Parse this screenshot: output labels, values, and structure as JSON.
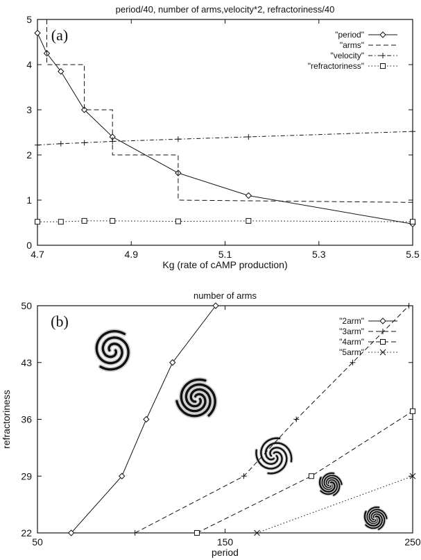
{
  "chart_data": [
    {
      "type": "line",
      "panel_label": "(a)",
      "title": "period/40, number of arms,velocity*2, refractoriness/40",
      "xlabel": "Kg (rate of cAMP production)",
      "ylabel": "",
      "xlim": [
        4.7,
        5.5
      ],
      "ylim": [
        0,
        5
      ],
      "xticks": [
        "4.7",
        "4.9",
        "5.1",
        "5.3",
        "5.5"
      ],
      "yticks": [
        "0",
        "1",
        "2",
        "3",
        "4",
        "5"
      ],
      "grid": false,
      "legend": "top-right",
      "series": [
        {
          "name": "\"period\"",
          "style": "solid",
          "marker": "diamond",
          "x": [
            4.7,
            4.72,
            4.75,
            4.8,
            4.86,
            5.0,
            5.15,
            5.5
          ],
          "y": [
            4.7,
            4.25,
            3.85,
            3.0,
            2.4,
            1.6,
            1.1,
            0.47
          ]
        },
        {
          "name": "\"arms\"",
          "style": "dashed",
          "marker": "none",
          "step": true,
          "x": [
            4.72,
            4.72,
            4.8,
            4.8,
            4.86,
            4.86,
            5.0,
            5.0,
            5.5
          ],
          "y": [
            5.0,
            4.0,
            4.0,
            3.0,
            3.0,
            2.0,
            2.0,
            1.0,
            0.95
          ]
        },
        {
          "name": "\"velocity\"",
          "style": "dotdash",
          "marker": "plus",
          "x": [
            4.7,
            4.75,
            4.8,
            4.86,
            5.0,
            5.15,
            5.5
          ],
          "y": [
            2.22,
            2.25,
            2.27,
            2.3,
            2.35,
            2.4,
            2.52
          ]
        },
        {
          "name": "\"refractoriness\"",
          "style": "dotted",
          "marker": "square",
          "x": [
            4.7,
            4.75,
            4.8,
            4.86,
            5.0,
            5.15,
            5.5
          ],
          "y": [
            0.52,
            0.52,
            0.54,
            0.54,
            0.53,
            0.54,
            0.52
          ]
        }
      ]
    },
    {
      "type": "line",
      "panel_label": "(b)",
      "title": "number of arms",
      "xlabel": "period",
      "ylabel": "refractoriness",
      "xlim": [
        50,
        250
      ],
      "ylim": [
        22,
        50
      ],
      "xticks": [
        "50",
        "150",
        "250"
      ],
      "yticks": [
        "22",
        "29",
        "36",
        "43",
        "50"
      ],
      "grid": false,
      "legend": "top-right",
      "series": [
        {
          "name": "\"2arm\"",
          "style": "solid",
          "marker": "diamond",
          "x": [
            68,
            95,
            108,
            122,
            145
          ],
          "y": [
            22,
            29,
            36,
            43,
            50
          ]
        },
        {
          "name": "\"3arm\"",
          "style": "dashed",
          "marker": "plus",
          "x": [
            102,
            160,
            188,
            218,
            248
          ],
          "y": [
            22,
            29,
            36,
            43,
            50
          ]
        },
        {
          "name": "\"4arm\"",
          "style": "dashed",
          "marker": "square",
          "x": [
            135,
            196,
            250
          ],
          "y": [
            22,
            29,
            37
          ]
        },
        {
          "name": "\"5arm\"",
          "style": "dotted",
          "marker": "x",
          "x": [
            167,
            250
          ],
          "y": [
            22,
            29
          ]
        }
      ],
      "spiral_images": [
        {
          "name": "2-arm spiral",
          "arms": 2,
          "x": 90,
          "y": 44.5
        },
        {
          "name": "3-arm spiral",
          "arms": 3,
          "x": 135,
          "y": 38.5
        },
        {
          "name": "4-arm spiral",
          "arms": 4,
          "x": 176,
          "y": 31.5
        },
        {
          "name": "5-arm spiral",
          "arms": 5,
          "x": 206,
          "y": 28
        },
        {
          "name": "5-arm spiral small",
          "arms": 5,
          "x": 230,
          "y": 23.8
        }
      ]
    }
  ]
}
